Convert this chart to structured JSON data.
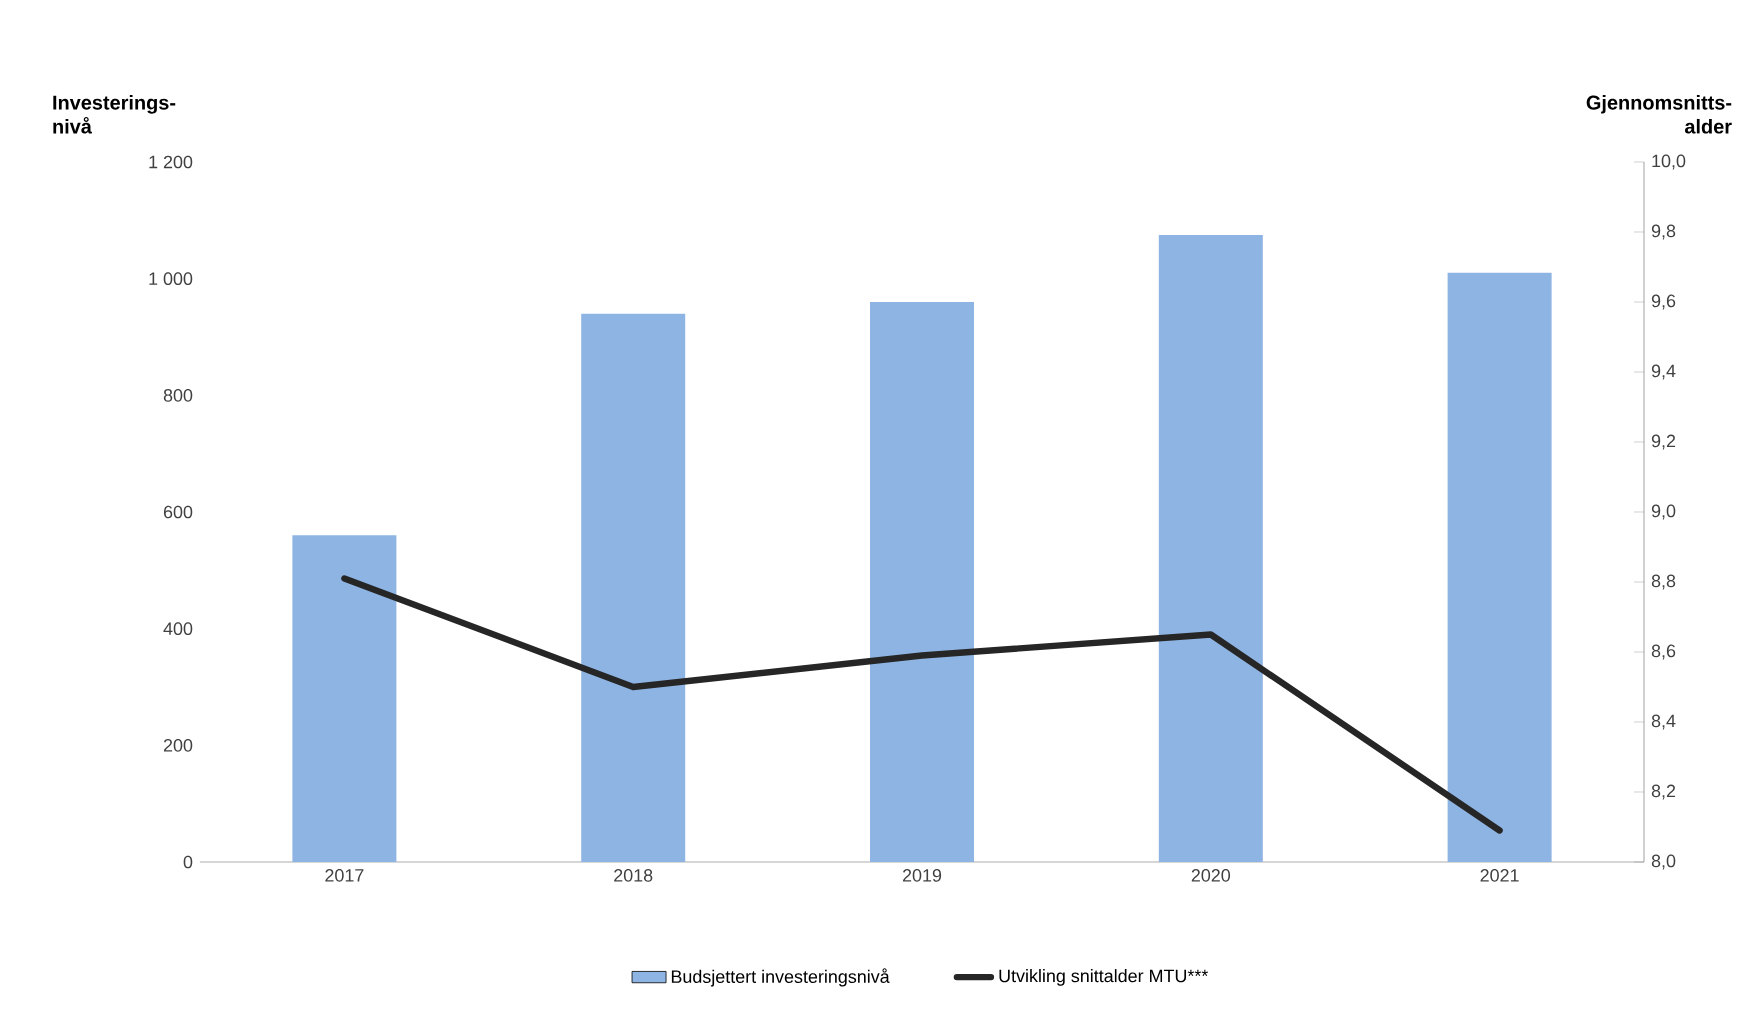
{
  "chart_data": {
    "type": "bar",
    "categories": [
      "2017",
      "2018",
      "2019",
      "2020",
      "2021"
    ],
    "ylabel": "Investerings-nivå",
    "y2label": "Gjennomsnitts-alder",
    "series": [
      {
        "name": "Budsjettert investeringsnivå",
        "color": "#8eb4e3",
        "values": [
          560,
          940,
          960,
          1075,
          1010
        ]
      },
      {
        "name": "Utvikling snittalder MTU***",
        "type": "line",
        "axis": "y2",
        "color": "#262626",
        "values": [
          8.81,
          8.5,
          8.59,
          8.65,
          8.09
        ]
      }
    ],
    "ylim": [
      0,
      1200
    ],
    "yticks": [
      0,
      200,
      400,
      600,
      800,
      {
        "value": 1000,
        "label": "1 000"
      },
      {
        "value": 1200,
        "label": "1 200"
      }
    ],
    "y2lim": [
      8.0,
      10.0
    ],
    "y2ticks": [
      {
        "value": 8.0,
        "label": "8,0"
      },
      {
        "value": 8.2,
        "label": "8,2"
      },
      {
        "value": 8.4,
        "label": "8,4"
      },
      {
        "value": 8.6,
        "label": "8,6"
      },
      {
        "value": 8.8,
        "label": "8,8"
      },
      {
        "value": 9.0,
        "label": "9,0"
      },
      {
        "value": 9.2,
        "label": "9,2"
      },
      {
        "value": 9.4,
        "label": "9,4"
      },
      {
        "value": 9.6,
        "label": "9,6"
      },
      {
        "value": 9.8,
        "label": "9,8"
      },
      {
        "value": 10.0,
        "label": "10,0"
      }
    ],
    "grid": false,
    "legend": "bottom",
    "marker": "none",
    "line_style": "solid"
  }
}
